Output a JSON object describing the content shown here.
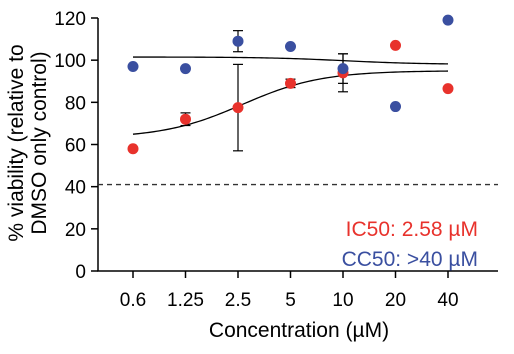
{
  "chart_data": {
    "type": "scatter",
    "title": "",
    "xlabel": "Concentration (µM)",
    "ylabel_line1": "% viability (relative to",
    "ylabel_line2": "DMSO only control)",
    "x_scale": "categorical (log-spaced doses)",
    "categories": [
      "0.6",
      "1.25",
      "2.5",
      "5",
      "10",
      "20",
      "40"
    ],
    "x_ticks": [
      "0.6",
      "1.25",
      "2.5",
      "5",
      "10",
      "20",
      "40"
    ],
    "y_ticks": [
      "0",
      "20",
      "40",
      "60",
      "80",
      "100",
      "120"
    ],
    "ylim": [
      0,
      120
    ],
    "grid": false,
    "reference_line": {
      "y": 41,
      "style": "dashed"
    },
    "series": [
      {
        "color": "#e8322c",
        "values": [
          58,
          72,
          77.5,
          89,
          94,
          107,
          86.5
        ],
        "error": [
          null,
          3,
          20.5,
          2,
          9,
          null,
          null
        ],
        "fit": {
          "bottom": 63,
          "top": 95,
          "ic50": 2.58
        }
      },
      {
        "color": "#3a4fa0",
        "values": [
          97,
          96,
          109,
          106.5,
          96,
          78,
          119
        ],
        "error": [
          null,
          null,
          5,
          null,
          7,
          null,
          null
        ],
        "fit": {
          "bottom": 101.5,
          "top": 98,
          "ic50": 10
        }
      }
    ],
    "annotations": [
      {
        "text": "IC50: 2.58 µM",
        "color": "#e8322c"
      },
      {
        "text": "CC50: >40 µM",
        "color": "#3a4fa0"
      }
    ]
  }
}
